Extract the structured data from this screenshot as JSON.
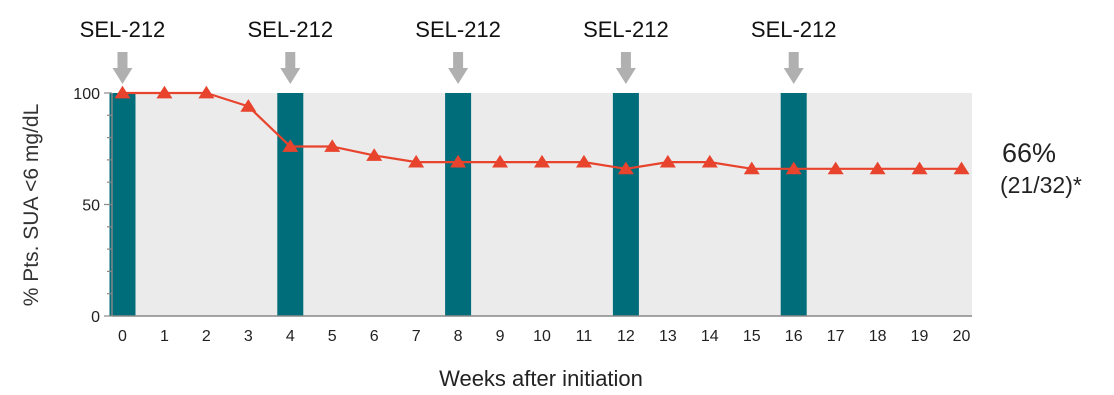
{
  "chart_data": {
    "type": "line",
    "title": "",
    "xlabel": "Weeks after initiation",
    "ylabel": "% Pts. SUA <6 mg/dL",
    "x": [
      0,
      1,
      2,
      3,
      4,
      5,
      6,
      7,
      8,
      9,
      10,
      11,
      12,
      13,
      14,
      15,
      16,
      17,
      18,
      19,
      20
    ],
    "x_ticks": [
      "0",
      "1",
      "2",
      "3",
      "4",
      "5",
      "6",
      "7",
      "8",
      "9",
      "10",
      "11",
      "12",
      "13",
      "14",
      "15",
      "16",
      "17",
      "18",
      "19",
      "20"
    ],
    "y_ticks": [
      "0",
      "50",
      "100"
    ],
    "xlim": [
      -0.25,
      20.25
    ],
    "ylim": [
      0,
      100
    ],
    "grid": false,
    "series": [
      {
        "name": "",
        "marker": "triangle",
        "color": "#e8432d",
        "values": [
          100,
          100,
          100,
          94,
          76,
          76,
          72,
          69,
          69,
          69,
          69,
          69,
          66,
          69,
          69,
          66,
          66,
          66,
          66,
          66,
          66
        ]
      }
    ],
    "dosing": {
      "label": "SEL-212",
      "weeks": [
        0,
        4,
        8,
        12,
        16
      ],
      "bar_color": "#006d7a",
      "arrow_color": "#b0b0b0"
    },
    "annotation": {
      "line1": "66%",
      "line2": "(21/32)*"
    },
    "background_color": "#ebebeb"
  }
}
